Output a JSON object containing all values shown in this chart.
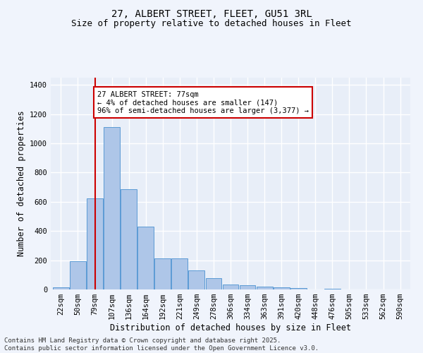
{
  "title1": "27, ALBERT STREET, FLEET, GU51 3RL",
  "title2": "Size of property relative to detached houses in Fleet",
  "xlabel": "Distribution of detached houses by size in Fleet",
  "ylabel": "Number of detached properties",
  "categories": [
    "22sqm",
    "50sqm",
    "79sqm",
    "107sqm",
    "136sqm",
    "164sqm",
    "192sqm",
    "221sqm",
    "249sqm",
    "278sqm",
    "306sqm",
    "334sqm",
    "363sqm",
    "391sqm",
    "420sqm",
    "448sqm",
    "476sqm",
    "505sqm",
    "533sqm",
    "562sqm",
    "590sqm"
  ],
  "values": [
    15,
    195,
    625,
    1110,
    685,
    430,
    215,
    215,
    130,
    78,
    33,
    28,
    18,
    13,
    8,
    2,
    3,
    1,
    0,
    0,
    0
  ],
  "bar_color": "#aec6e8",
  "bar_edge_color": "#5b9bd5",
  "bg_color": "#e8eef8",
  "fig_bg_color": "#f0f4fc",
  "grid_color": "#ffffff",
  "redline_x": 2,
  "annotation_title": "27 ALBERT STREET: 77sqm",
  "annotation_line1": "← 4% of detached houses are smaller (147)",
  "annotation_line2": "96% of semi-detached houses are larger (3,377) →",
  "annotation_box_color": "#ffffff",
  "annotation_box_edge": "#cc0000",
  "redline_color": "#cc0000",
  "ylim": [
    0,
    1450
  ],
  "yticks": [
    0,
    200,
    400,
    600,
    800,
    1000,
    1200,
    1400
  ],
  "footer1": "Contains HM Land Registry data © Crown copyright and database right 2025.",
  "footer2": "Contains public sector information licensed under the Open Government Licence v3.0.",
  "title1_fontsize": 10,
  "title2_fontsize": 9,
  "xlabel_fontsize": 8.5,
  "ylabel_fontsize": 8.5,
  "tick_fontsize": 7.5,
  "annotation_fontsize": 7.5,
  "footer_fontsize": 6.5
}
